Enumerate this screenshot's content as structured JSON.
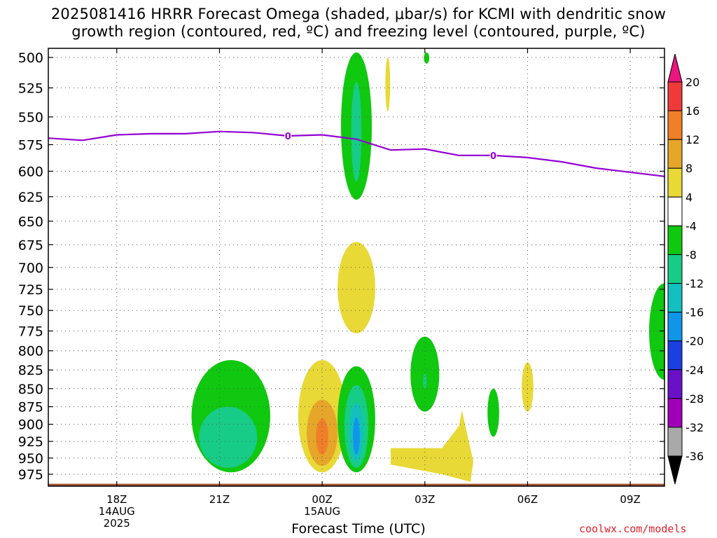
{
  "header": {
    "title_line1": "2025081416 HRRR Forecast Omega (shaded, μbar/s) for KCMI with dendritic snow",
    "title_line2": "growth region (contoured, red, ºC) and freezing level (contoured, purple, ºC)"
  },
  "footer": {
    "watermark": "coolwx.com/models"
  },
  "chart_data": {
    "type": "heatmap",
    "xlabel": "Forecast Time (UTC)",
    "ylabel": "",
    "x_range": [
      "2025-08-14T16:00Z",
      "2025-08-15T10:00Z"
    ],
    "y_axis": {
      "range": [
        500,
        995
      ],
      "inverted": true
    },
    "y_ticks": [
      500,
      525,
      550,
      575,
      600,
      625,
      650,
      675,
      700,
      725,
      750,
      775,
      800,
      825,
      850,
      875,
      900,
      925,
      950,
      975
    ],
    "x_ticks": [
      {
        "time": "2025-08-14T18:00Z",
        "label": [
          "18Z",
          "14AUG",
          "2025"
        ]
      },
      {
        "time": "2025-08-14T21:00Z",
        "label": [
          "21Z"
        ]
      },
      {
        "time": "2025-08-15T00:00Z",
        "label": [
          "00Z",
          "15AUG"
        ]
      },
      {
        "time": "2025-08-15T03:00Z",
        "label": [
          "03Z"
        ]
      },
      {
        "time": "2025-08-15T06:00Z",
        "label": [
          "06Z"
        ]
      },
      {
        "time": "2025-08-15T09:00Z",
        "label": [
          "09Z"
        ]
      }
    ],
    "grid": true,
    "colorbar": {
      "labels": [
        20,
        16,
        12,
        8,
        4,
        -4,
        -8,
        -12,
        -16,
        -20,
        -24,
        -28,
        -32,
        -36
      ],
      "colors": [
        "#e8167e",
        "#f03a3a",
        "#f07f28",
        "#e6a629",
        "#e8d936",
        "#ffffff",
        "#0fc80f",
        "#17cc86",
        "#13c0bf",
        "#1096e8",
        "#1b3fe0",
        "#6a10c8",
        "#a000b8",
        "#a9a9a9",
        "#000000"
      ]
    },
    "freezing_level": {
      "label": "0",
      "color": "#9400d3",
      "points": [
        [
          "2025-08-14T16:00Z",
          569
        ],
        [
          "2025-08-14T17:00Z",
          571
        ],
        [
          "2025-08-14T18:00Z",
          566
        ],
        [
          "2025-08-14T19:00Z",
          565
        ],
        [
          "2025-08-14T20:00Z",
          565
        ],
        [
          "2025-08-14T21:00Z",
          563
        ],
        [
          "2025-08-14T22:00Z",
          564
        ],
        [
          "2025-08-14T23:00Z",
          567
        ],
        [
          "2025-08-15T00:00Z",
          566
        ],
        [
          "2025-08-15T01:00Z",
          570
        ],
        [
          "2025-08-15T02:00Z",
          580
        ],
        [
          "2025-08-15T03:00Z",
          579
        ],
        [
          "2025-08-15T04:00Z",
          585
        ],
        [
          "2025-08-15T05:00Z",
          585
        ],
        [
          "2025-08-15T06:00Z",
          587
        ],
        [
          "2025-08-15T07:00Z",
          591
        ],
        [
          "2025-08-15T08:00Z",
          597
        ],
        [
          "2025-08-15T09:00Z",
          601
        ],
        [
          "2025-08-15T10:00Z",
          605
        ]
      ],
      "label_times": [
        "2025-08-14T23:00Z",
        "2025-08-15T05:00Z"
      ]
    },
    "omega_regions": [
      {
        "time_center": "2025-08-15T01:00Z",
        "p_top": 496,
        "p_bottom": 628,
        "half_width_h": 0.45,
        "value": -6
      },
      {
        "time_center": "2025-08-15T01:00Z",
        "p_top": 520,
        "p_bottom": 610,
        "half_width_h": 0.15,
        "value": -10
      },
      {
        "time_center": "2025-08-15T01:55Z",
        "p_top": 500,
        "p_bottom": 545,
        "half_width_h": 0.07,
        "value": 5
      },
      {
        "time_center": "2025-08-15T03:03Z",
        "p_top": 496,
        "p_bottom": 505,
        "half_width_h": 0.08,
        "value": -6
      },
      {
        "time_center": "2025-08-15T01:00Z",
        "p_top": 672,
        "p_bottom": 778,
        "half_width_h": 0.55,
        "value": 5
      },
      {
        "time_center": "2025-08-14T21:20Z",
        "p_top": 812,
        "p_bottom": 972,
        "half_width_h": 1.15,
        "value": -6
      },
      {
        "time_center": "2025-08-14T21:15Z",
        "p_top": 875,
        "p_bottom": 965,
        "half_width_h": 0.85,
        "value": -10
      },
      {
        "time_center": "2025-08-15T00:00Z",
        "p_top": 812,
        "p_bottom": 972,
        "half_width_h": 0.7,
        "value": 5
      },
      {
        "time_center": "2025-08-15T00:00Z",
        "p_top": 865,
        "p_bottom": 962,
        "half_width_h": 0.45,
        "value": 9
      },
      {
        "time_center": "2025-08-15T00:00Z",
        "p_top": 892,
        "p_bottom": 945,
        "half_width_h": 0.18,
        "value": 13
      },
      {
        "time_center": "2025-08-15T01:00Z",
        "p_top": 820,
        "p_bottom": 972,
        "half_width_h": 0.55,
        "value": -6
      },
      {
        "time_center": "2025-08-15T01:00Z",
        "p_top": 845,
        "p_bottom": 965,
        "half_width_h": 0.35,
        "value": -10
      },
      {
        "time_center": "2025-08-15T01:00Z",
        "p_top": 870,
        "p_bottom": 955,
        "half_width_h": 0.2,
        "value": -14
      },
      {
        "time_center": "2025-08-15T01:00Z",
        "p_top": 890,
        "p_bottom": 945,
        "half_width_h": 0.1,
        "value": -18
      },
      {
        "time_center": "2025-08-15T03:00Z",
        "p_top": 782,
        "p_bottom": 882,
        "half_width_h": 0.42,
        "value": -6
      },
      {
        "time_center": "2025-08-15T03:00Z",
        "p_top": 830,
        "p_bottom": 850,
        "half_width_h": 0.05,
        "value": -10
      },
      {
        "time_center": "2025-08-15T05:00Z",
        "p_top": 850,
        "p_bottom": 918,
        "half_width_h": 0.17,
        "value": -6
      },
      {
        "time_center": "2025-08-15T06:00Z",
        "p_top": 815,
        "p_bottom": 882,
        "half_width_h": 0.17,
        "value": 5
      },
      {
        "time_center": "2025-08-15T10:00Z",
        "p_top": 718,
        "p_bottom": 838,
        "half_width_h": 0.45,
        "value": -6
      }
    ],
    "omega_polygons": [
      {
        "value": 5,
        "points": [
          [
            "2025-08-15T02:00Z",
            935
          ],
          [
            "2025-08-15T03:00Z",
            935
          ],
          [
            "2025-08-15T03:30Z",
            935
          ],
          [
            "2025-08-15T04:00Z",
            902
          ],
          [
            "2025-08-15T04:05Z",
            880
          ],
          [
            "2025-08-15T04:13Z",
            910
          ],
          [
            "2025-08-15T04:25Z",
            955
          ],
          [
            "2025-08-15T04:20Z",
            987
          ],
          [
            "2025-08-15T03:30Z",
            975
          ],
          [
            "2025-08-15T02:30Z",
            965
          ],
          [
            "2025-08-15T02:00Z",
            960
          ]
        ]
      }
    ],
    "surface_terrain": {
      "pressure": 990,
      "color": "#a0522d"
    }
  }
}
